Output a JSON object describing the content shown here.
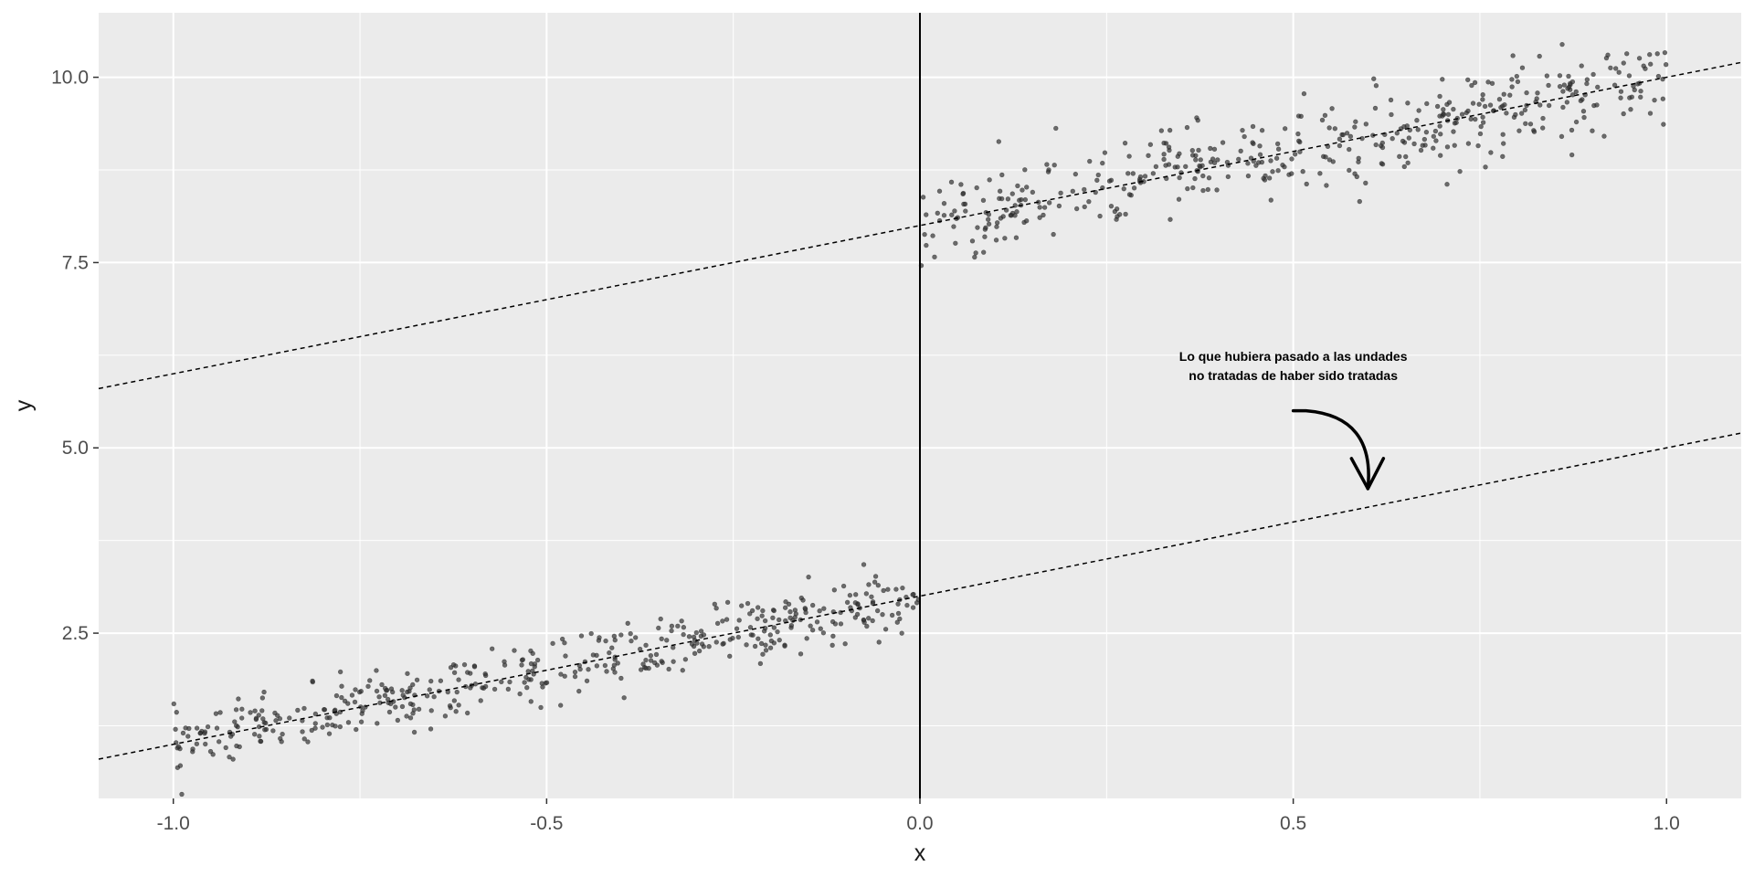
{
  "chart_data": {
    "type": "scatter",
    "title": "",
    "xlabel": "x",
    "ylabel": "y",
    "xlim": [
      -1.1,
      1.1
    ],
    "ylim": [
      0.27,
      10.87
    ],
    "xticks": [
      -1.0,
      -0.5,
      0.0,
      0.5,
      1.0
    ],
    "xtick_labels": [
      "-1.0",
      "-0.5",
      "0.0",
      "0.5",
      "1.0"
    ],
    "yticks": [
      2.5,
      5.0,
      7.5,
      10.0
    ],
    "ytick_labels": [
      "2.5",
      "5.0",
      "7.5",
      "10.0"
    ],
    "grid": true,
    "panel_background": "#ebebeb",
    "grid_color": "#ffffff",
    "point_color": "#333333",
    "threshold": {
      "x": 0.0,
      "color": "#000000"
    },
    "scatter_groups": [
      {
        "x_range": [
          -1.0,
          0.0
        ],
        "intercept": 3.0,
        "slope": 2.0,
        "noise_sd": 0.2,
        "n": 450
      },
      {
        "x_range": [
          0.0,
          1.0
        ],
        "intercept": 8.0,
        "slope": 2.0,
        "noise_sd": 0.3,
        "n": 450
      }
    ],
    "lines": [
      {
        "style": "dashed",
        "x": [
          -1.1,
          1.1
        ],
        "y": [
          5.8,
          10.2
        ]
      },
      {
        "style": "dashed",
        "x": [
          -1.1,
          1.1
        ],
        "y": [
          0.8,
          5.2
        ]
      }
    ],
    "annotations": [
      {
        "lines": [
          "Lo que hubiera pasado a las undades",
          "no tratadas de haber sido tratadas"
        ],
        "text_x": 0.5,
        "text_y": 6.05,
        "arrow_from": [
          0.5,
          5.5
        ],
        "arrow_to": [
          0.6,
          4.45
        ]
      }
    ]
  }
}
